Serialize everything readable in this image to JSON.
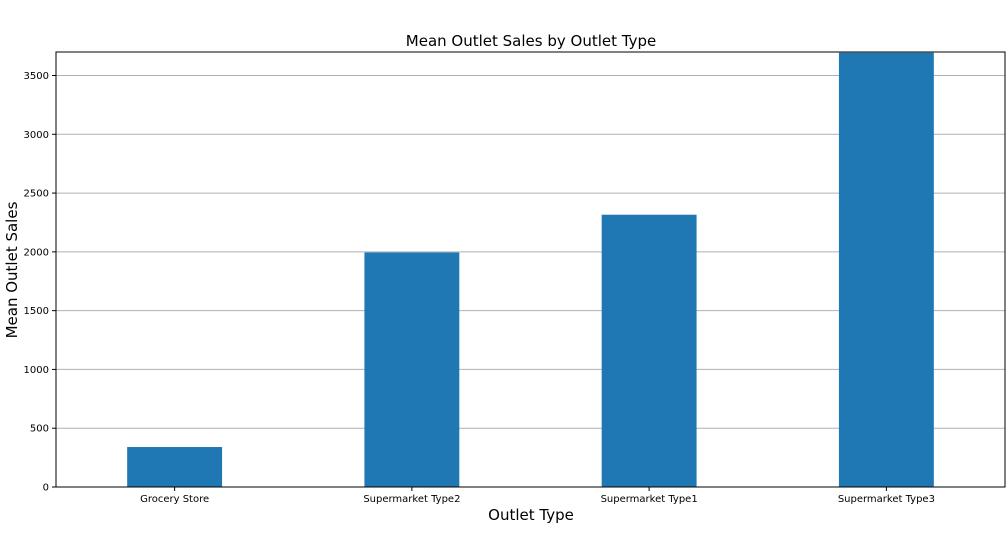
{
  "chart_data": {
    "type": "bar",
    "title": "Mean Outlet Sales by Outlet Type",
    "xlabel": "Outlet Type",
    "ylabel": "Mean Outlet Sales",
    "categories": [
      "Grocery Store",
      "Supermarket Type2",
      "Supermarket Type1",
      "Supermarket Type3"
    ],
    "values": [
      340,
      1995,
      2316,
      3694
    ],
    "ylim": [
      0,
      3700
    ],
    "yticks": [
      0,
      500,
      1000,
      1500,
      2000,
      2500,
      3000,
      3500
    ],
    "grid": "horizontal",
    "bar_color": "#1f77b4",
    "grid_color": "#b0b0b0"
  }
}
